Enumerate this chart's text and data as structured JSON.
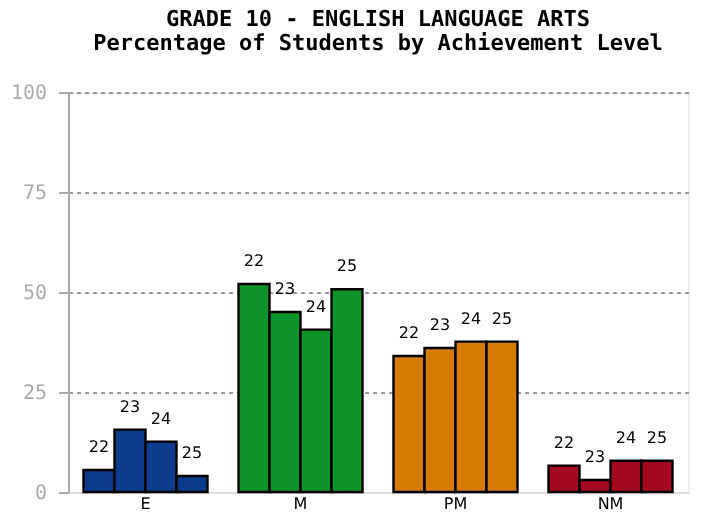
{
  "chart_data": {
    "type": "bar",
    "title": "GRADE 10 - ENGLISH LANGUAGE ARTS",
    "subtitle": "Percentage of Students by Achievement Level",
    "categories": [
      "E",
      "M",
      "PM",
      "NM"
    ],
    "series": [
      {
        "name": "22",
        "colors": [
          "#0b3d8c",
          "#0e9428",
          "#d67b06",
          "#a5091f"
        ],
        "values": [
          5.5,
          52,
          34,
          6.6
        ]
      },
      {
        "name": "23",
        "colors": [
          "#0b3d8c",
          "#0e9428",
          "#d67b06",
          "#a5091f"
        ],
        "values": [
          15.6,
          45,
          36,
          3
        ]
      },
      {
        "name": "24",
        "colors": [
          "#0b3d8c",
          "#0e9428",
          "#d67b06",
          "#a5091f"
        ],
        "values": [
          12.6,
          40.6,
          37.6,
          7.8
        ]
      },
      {
        "name": "25",
        "colors": [
          "#0b3d8c",
          "#0e9428",
          "#d67b06",
          "#a5091f"
        ],
        "values": [
          4,
          50.7,
          37.6,
          7.8
        ]
      }
    ],
    "ylim": [
      0,
      100
    ],
    "yticks": [
      0,
      25,
      50,
      75,
      100
    ],
    "grid": "y"
  }
}
